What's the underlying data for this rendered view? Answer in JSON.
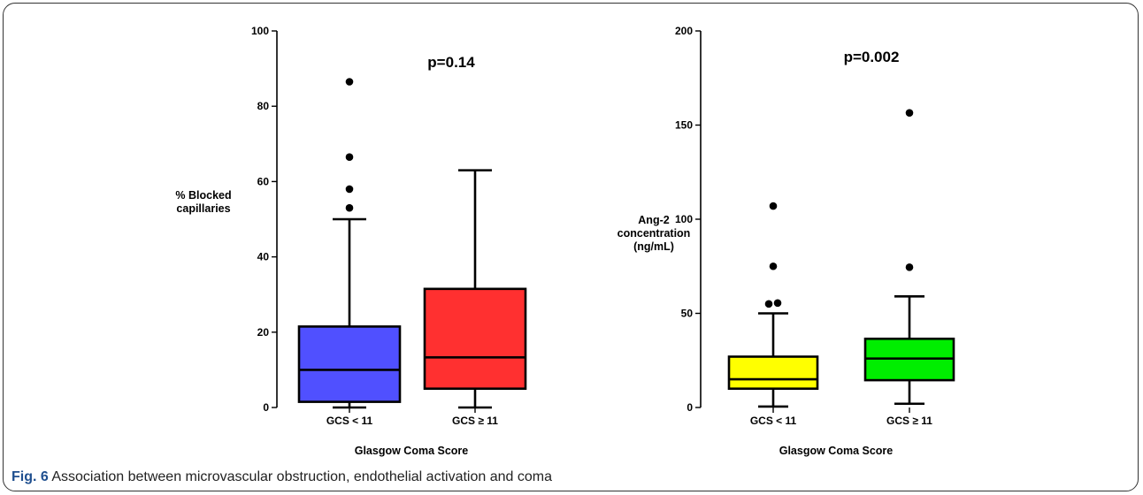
{
  "chart_data": [
    {
      "type": "box",
      "ylabel": "% Blocked\ncapillaries",
      "xlabel": "Glasgow Coma Score",
      "ylim": [
        0,
        100
      ],
      "yticks": [
        0,
        20,
        40,
        60,
        80,
        100
      ],
      "annotation": "p=0.14",
      "categories": [
        "GCS < 11",
        "GCS ≥ 11"
      ],
      "boxes": [
        {
          "category": "GCS < 11",
          "color": "#5050ff",
          "min": 0,
          "q1": 1.5,
          "median": 10,
          "q3": 21.5,
          "max": 50,
          "outliers": [
            53,
            58,
            66.5,
            86.5
          ]
        },
        {
          "category": "GCS ≥ 11",
          "color": "#ff3030",
          "min": 0,
          "q1": 5,
          "median": 13.3,
          "q3": 31.5,
          "max": 63,
          "outliers": []
        }
      ]
    },
    {
      "type": "box",
      "ylabel": "Ang-2\nconcentration\n(ng/mL)",
      "xlabel": "Glasgow Coma Score",
      "ylim": [
        0,
        200
      ],
      "yticks": [
        0,
        50,
        100,
        150,
        200
      ],
      "annotation": "p=0.002",
      "categories": [
        "GCS < 11",
        "GCS ≥ 11"
      ],
      "boxes": [
        {
          "category": "GCS < 11",
          "color": "#ffff00",
          "min": 0.5,
          "q1": 10,
          "median": 15,
          "q3": 27,
          "max": 50,
          "outliers": [
            55,
            55.5,
            75,
            107
          ]
        },
        {
          "category": "GCS ≥ 11",
          "color": "#00ee00",
          "min": 2,
          "q1": 14.5,
          "median": 26,
          "q3": 36.5,
          "max": 59,
          "outliers": [
            74.5,
            156.5
          ]
        }
      ]
    }
  ],
  "caption": {
    "label": "Fig. 6",
    "text": "Association between microvascular obstruction, endothelial activation and coma"
  }
}
